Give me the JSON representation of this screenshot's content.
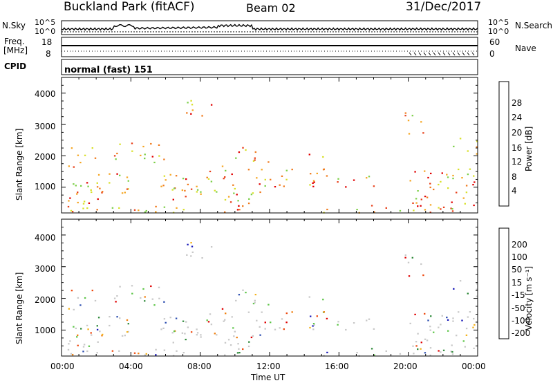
{
  "header": {
    "station": "Buckland Park (fitACF)",
    "beam": "Beam 02",
    "date": "31/Dec/2017"
  },
  "top_panels": {
    "nsky_label": "N.Sky",
    "nsearch_label": "N.Search",
    "noise_ticks_left": [
      "10^5",
      "10^0"
    ],
    "noise_ticks_right": [
      "10^5",
      "10^0"
    ],
    "freq_label_1": "Freq.",
    "freq_label_2": "[MHz]",
    "freq_ticks": [
      "18",
      "8"
    ],
    "nave_label": "Nave",
    "nave_ticks": [
      "60",
      "0"
    ],
    "cpid_label": "CPID",
    "cpid_value": "normal (fast) 151"
  },
  "chart_data": [
    {
      "type": "heatmap",
      "name": "power",
      "ylabel": "Slant Range [km]",
      "y_ticks": [
        "1000",
        "2000",
        "3000",
        "4000"
      ],
      "ylim": [
        180,
        4500
      ],
      "xlim_hours": [
        0,
        24
      ],
      "colorbar_label": "Power [dB]",
      "colorbar_ticks": [
        "4",
        "8",
        "12",
        "16",
        "20",
        "24",
        "28"
      ],
      "colorbar_colors": [
        "#0a14e6",
        "#2e5fa8",
        "#3f9a5e",
        "#7ed04a",
        "#d8e02a",
        "#f5a623",
        "#f07a1c",
        "#e8401a",
        "#e00000"
      ]
    },
    {
      "type": "heatmap",
      "name": "velocity",
      "ylabel": "Slant Range [km]",
      "y_ticks": [
        "1000",
        "2000",
        "3000",
        "4000"
      ],
      "ylim": [
        180,
        4500
      ],
      "xlim_hours": [
        0,
        24
      ],
      "colorbar_label": "Velocity [m s⁻¹]",
      "colorbar_ticks": [
        "200",
        "100",
        "50",
        "15",
        "-15",
        "-50",
        "-100",
        "-200"
      ],
      "colorbar_colors": [
        "#1a1ab8",
        "#2d4fb0",
        "#2f8a3a",
        "#5fc64a",
        "#c8c8c8",
        "#f5b21c",
        "#f08010",
        "#ee4a10",
        "#e00000"
      ]
    }
  ],
  "x_axis": {
    "ticks": [
      "00:00",
      "04:00",
      "08:00",
      "12:00",
      "16:00",
      "20:00",
      "00:00"
    ],
    "label": "Time UT"
  }
}
